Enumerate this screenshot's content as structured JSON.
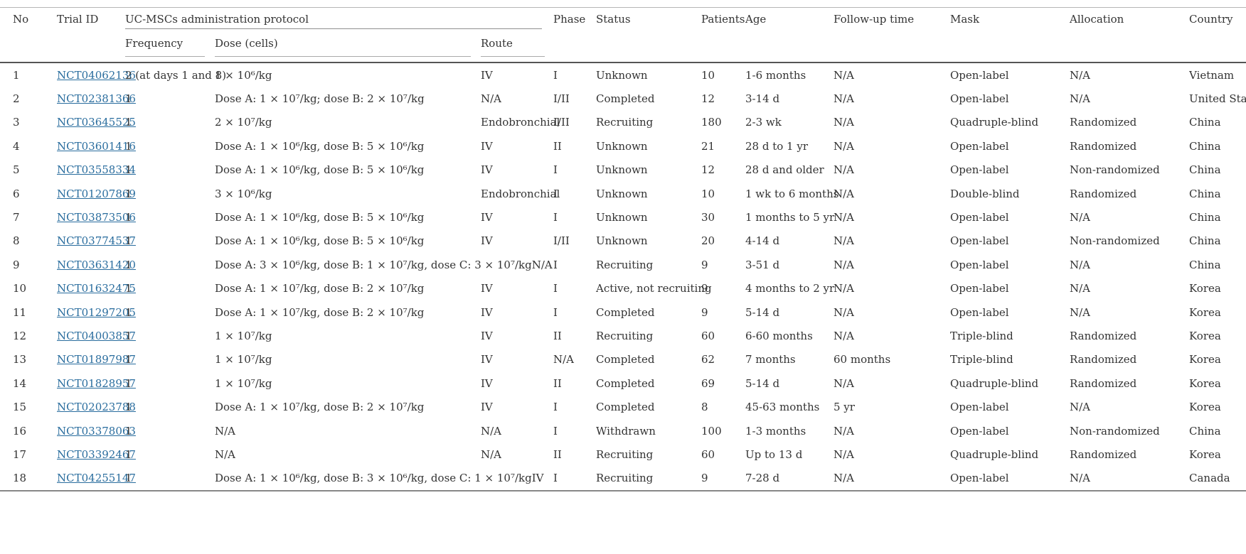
{
  "colors": {
    "link_blue": "#2a6d9e",
    "text": "#333333",
    "rule_light": "#b5b5b5",
    "rule_dark": "#555555"
  },
  "table": {
    "headers": {
      "no": "No",
      "trial_id": "Trial ID",
      "protocol_group": "UC-MSCs administration protocol",
      "frequency": "Frequency",
      "dose": "Dose (cells)",
      "route": "Route",
      "phase": "Phase",
      "status": "Status",
      "patients": "Patients",
      "age": "Age",
      "follow_up": "Follow-up time",
      "mask": "Mask",
      "allocation": "Allocation",
      "country": "Country"
    },
    "rows": [
      {
        "no": "1",
        "trial_id": "NCT04062136",
        "frequency": "2 (at days 1 and 8)",
        "dose": "1 × 10⁶/kg",
        "route": "IV",
        "phase": "I",
        "status": "Unknown",
        "patients": "10",
        "age": "1-6 months",
        "follow_up": "N/A",
        "mask": "Open-label",
        "allocation": "N/A",
        "country": "Vietnam"
      },
      {
        "no": "2",
        "trial_id": "NCT02381366",
        "frequency": "1",
        "dose": "Dose A: 1 × 10⁷/kg; dose B: 2 × 10⁷/kg",
        "route": "N/A",
        "phase": "I/II",
        "status": "Completed",
        "patients": "12",
        "age": "3-14 d",
        "follow_up": "N/A",
        "mask": "Open-label",
        "allocation": "N/A",
        "country": "United States"
      },
      {
        "no": "3",
        "trial_id": "NCT03645525",
        "frequency": "1",
        "dose": "2 × 10⁷/kg",
        "route": "Endobronchial",
        "phase": "I/II",
        "status": "Recruiting",
        "patients": "180",
        "age": "2-3 wk",
        "follow_up": "N/A",
        "mask": "Quadruple-blind",
        "allocation": "Randomized",
        "country": "China"
      },
      {
        "no": "4",
        "trial_id": "NCT03601416",
        "frequency": "1",
        "dose": "Dose A: 1 × 10⁶/kg, dose B: 5 × 10⁶/kg",
        "route": "IV",
        "phase": "II",
        "status": "Unknown",
        "patients": "21",
        "age": "28 d to 1 yr",
        "follow_up": "N/A",
        "mask": "Open-label",
        "allocation": "Randomized",
        "country": "China"
      },
      {
        "no": "5",
        "trial_id": "NCT03558334",
        "frequency": "1",
        "dose": "Dose A: 1 × 10⁶/kg, dose B: 5 × 10⁶/kg",
        "route": "IV",
        "phase": "I",
        "status": "Unknown",
        "patients": "12",
        "age": "28 d and older",
        "follow_up": "N/A",
        "mask": "Open-label",
        "allocation": "Non-randomized",
        "country": "China"
      },
      {
        "no": "6",
        "trial_id": "NCT01207869",
        "frequency": "1",
        "dose": "3 × 10⁶/kg",
        "route": "Endobronchial",
        "phase": "I",
        "status": "Unknown",
        "patients": "10",
        "age": "1 wk to 6 months",
        "follow_up": "N/A",
        "mask": "Double-blind",
        "allocation": "Randomized",
        "country": "China"
      },
      {
        "no": "7",
        "trial_id": "NCT03873506",
        "frequency": "1",
        "dose": "Dose A: 1 × 10⁶/kg, dose B: 5 × 10⁶/kg",
        "route": "IV",
        "phase": "I",
        "status": "Unknown",
        "patients": "30",
        "age": "1 months to 5 yr",
        "follow_up": "N/A",
        "mask": "Open-label",
        "allocation": "N/A",
        "country": "China"
      },
      {
        "no": "8",
        "trial_id": "NCT03774537",
        "frequency": "1",
        "dose": "Dose A: 1 × 10⁶/kg, dose B: 5 × 10⁶/kg",
        "route": "IV",
        "phase": "I/II",
        "status": "Unknown",
        "patients": "20",
        "age": "4-14 d",
        "follow_up": "N/A",
        "mask": "Open-label",
        "allocation": "Non-randomized",
        "country": "China"
      },
      {
        "no": "9",
        "trial_id": "NCT03631420",
        "frequency": "1",
        "dose": "Dose A: 3 × 10⁶/kg, dose B: 1 × 10⁷/kg, dose C: 3 × 10⁷/kg",
        "route": "N/A",
        "phase": "I",
        "status": "Recruiting",
        "patients": "9",
        "age": "3-51 d",
        "follow_up": "N/A",
        "mask": "Open-label",
        "allocation": "N/A",
        "country": "China"
      },
      {
        "no": "10",
        "trial_id": "NCT01632475",
        "frequency": "1",
        "dose": "Dose A: 1 × 10⁷/kg, dose B: 2 × 10⁷/kg",
        "route": "IV",
        "phase": "I",
        "status": "Active, not recruiting",
        "patients": "9",
        "age": "4 months to 2 yr",
        "follow_up": "N/A",
        "mask": "Open-label",
        "allocation": "N/A",
        "country": "Korea"
      },
      {
        "no": "11",
        "trial_id": "NCT01297205",
        "frequency": "1",
        "dose": "Dose A: 1 × 10⁷/kg, dose B: 2 × 10⁷/kg",
        "route": "IV",
        "phase": "I",
        "status": "Completed",
        "patients": "9",
        "age": "5-14 d",
        "follow_up": "N/A",
        "mask": "Open-label",
        "allocation": "N/A",
        "country": "Korea"
      },
      {
        "no": "12",
        "trial_id": "NCT04003857",
        "frequency": "1",
        "dose": "1 × 10⁷/kg",
        "route": "IV",
        "phase": "II",
        "status": "Recruiting",
        "patients": "60",
        "age": "6-60 months",
        "follow_up": "N/A",
        "mask": "Triple-blind",
        "allocation": "Randomized",
        "country": "Korea"
      },
      {
        "no": "13",
        "trial_id": "NCT01897987",
        "frequency": "1",
        "dose": "1 × 10⁷/kg",
        "route": "IV",
        "phase": "N/A",
        "status": "Completed",
        "patients": "62",
        "age": "7 months",
        "follow_up": "60 months",
        "mask": "Triple-blind",
        "allocation": "Randomized",
        "country": "Korea"
      },
      {
        "no": "14",
        "trial_id": "NCT01828957",
        "frequency": "1",
        "dose": "1 × 10⁷/kg",
        "route": "IV",
        "phase": "II",
        "status": "Completed",
        "patients": "69",
        "age": "5-14 d",
        "follow_up": "N/A",
        "mask": "Quadruple-blind",
        "allocation": "Randomized",
        "country": "Korea"
      },
      {
        "no": "15",
        "trial_id": "NCT02023788",
        "frequency": "1",
        "dose": "Dose A: 1 × 10⁷/kg, dose B: 2 × 10⁷/kg",
        "route": "IV",
        "phase": "I",
        "status": "Completed",
        "patients": "8",
        "age": "45-63 months",
        "follow_up": "5 yr",
        "mask": "Open-label",
        "allocation": "N/A",
        "country": "Korea"
      },
      {
        "no": "16",
        "trial_id": "NCT03378063",
        "frequency": "1",
        "dose": "N/A",
        "route": "N/A",
        "phase": "I",
        "status": "Withdrawn",
        "patients": "100",
        "age": "1-3 months",
        "follow_up": "N/A",
        "mask": "Open-label",
        "allocation": "Non-randomized",
        "country": "China"
      },
      {
        "no": "17",
        "trial_id": "NCT03392467",
        "frequency": "1",
        "dose": "N/A",
        "route": "N/A",
        "phase": "II",
        "status": "Recruiting",
        "patients": "60",
        "age": "Up to 13 d",
        "follow_up": "N/A",
        "mask": "Quadruple-blind",
        "allocation": "Randomized",
        "country": "Korea"
      },
      {
        "no": "18",
        "trial_id": "NCT04255147",
        "frequency": "1",
        "dose": "Dose A: 1 × 10⁶/kg, dose B: 3 × 10⁶/kg, dose C: 1 × 10⁷/kg",
        "route": "IV",
        "phase": "I",
        "status": "Recruiting",
        "patients": "9",
        "age": "7-28 d",
        "follow_up": "N/A",
        "mask": "Open-label",
        "allocation": "N/A",
        "country": "Canada"
      }
    ]
  }
}
